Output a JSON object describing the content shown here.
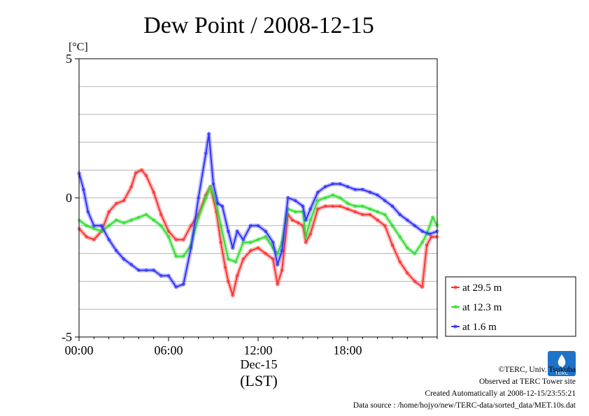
{
  "chart_data": {
    "type": "line",
    "title": "Dew Point / 2008-12-15",
    "ylabel": "[°C]",
    "xlabel_date": "Dec-15",
    "xlabel_tz": "(LST)",
    "xlim_hours": [
      0,
      24
    ],
    "ylim": [
      -5,
      5
    ],
    "yticks": [
      -5,
      0,
      5
    ],
    "ytick_labels": [
      "-5",
      "0",
      "5"
    ],
    "ygrid_step": 1,
    "xtick_hours": [
      0,
      6,
      12,
      18
    ],
    "xtick_labels": [
      "00:00",
      "06:00",
      "12:00",
      "18:00"
    ],
    "legend_position": "lower-right-outside",
    "series": [
      {
        "name": "at 29.5 m",
        "color": "#ff3333",
        "points": [
          [
            0,
            -1.1
          ],
          [
            0.5,
            -1.4
          ],
          [
            1,
            -1.5
          ],
          [
            1.5,
            -1.2
          ],
          [
            2,
            -0.5
          ],
          [
            2.5,
            -0.2
          ],
          [
            3,
            -0.1
          ],
          [
            3.5,
            0.4
          ],
          [
            3.8,
            0.9
          ],
          [
            4.2,
            1.0
          ],
          [
            4.5,
            0.8
          ],
          [
            5,
            0.2
          ],
          [
            5.5,
            -0.6
          ],
          [
            6,
            -1.2
          ],
          [
            6.5,
            -1.5
          ],
          [
            7,
            -1.5
          ],
          [
            7.5,
            -1.0
          ],
          [
            8,
            -0.6
          ],
          [
            8.5,
            0.1
          ],
          [
            8.8,
            0.4
          ],
          [
            9.2,
            -0.5
          ],
          [
            9.5,
            -1.6
          ],
          [
            9.8,
            -2.5
          ],
          [
            10,
            -3.0
          ],
          [
            10.3,
            -3.5
          ],
          [
            10.6,
            -2.8
          ],
          [
            11,
            -2.2
          ],
          [
            11.5,
            -1.9
          ],
          [
            12,
            -1.8
          ],
          [
            12.5,
            -2.0
          ],
          [
            13,
            -2.2
          ],
          [
            13.3,
            -3.1
          ],
          [
            13.6,
            -2.6
          ],
          [
            14,
            -0.6
          ],
          [
            14.3,
            -0.8
          ],
          [
            14.7,
            -0.9
          ],
          [
            15,
            -1.0
          ],
          [
            15.2,
            -1.6
          ],
          [
            15.5,
            -1.3
          ],
          [
            16,
            -0.4
          ],
          [
            16.5,
            -0.3
          ],
          [
            17,
            -0.3
          ],
          [
            17.5,
            -0.3
          ],
          [
            18,
            -0.4
          ],
          [
            18.5,
            -0.5
          ],
          [
            19,
            -0.6
          ],
          [
            19.5,
            -0.6
          ],
          [
            20,
            -0.8
          ],
          [
            20.5,
            -1.0
          ],
          [
            21,
            -1.7
          ],
          [
            21.5,
            -2.3
          ],
          [
            22,
            -2.7
          ],
          [
            22.5,
            -3.0
          ],
          [
            23,
            -3.2
          ],
          [
            23.3,
            -1.7
          ],
          [
            23.6,
            -1.4
          ],
          [
            24,
            -1.4
          ]
        ]
      },
      {
        "name": "at 12.3 m",
        "color": "#33dd33",
        "points": [
          [
            0,
            -0.8
          ],
          [
            0.5,
            -1.0
          ],
          [
            1,
            -1.1
          ],
          [
            1.5,
            -1.2
          ],
          [
            2,
            -1.0
          ],
          [
            2.5,
            -0.8
          ],
          [
            3,
            -0.9
          ],
          [
            3.5,
            -0.8
          ],
          [
            4,
            -0.7
          ],
          [
            4.5,
            -0.6
          ],
          [
            5,
            -0.8
          ],
          [
            5.5,
            -1.0
          ],
          [
            6,
            -1.4
          ],
          [
            6.5,
            -2.1
          ],
          [
            7,
            -2.1
          ],
          [
            7.5,
            -1.7
          ],
          [
            8,
            -0.7
          ],
          [
            8.5,
            0.0
          ],
          [
            8.8,
            0.4
          ],
          [
            9.2,
            -0.2
          ],
          [
            9.5,
            -1.0
          ],
          [
            10,
            -2.2
          ],
          [
            10.5,
            -2.3
          ],
          [
            11,
            -1.6
          ],
          [
            11.5,
            -1.6
          ],
          [
            12,
            -1.5
          ],
          [
            12.5,
            -1.4
          ],
          [
            13,
            -1.8
          ],
          [
            13.3,
            -2.0
          ],
          [
            13.6,
            -1.6
          ],
          [
            14,
            -0.4
          ],
          [
            14.5,
            -0.5
          ],
          [
            15,
            -0.5
          ],
          [
            15.2,
            -1.4
          ],
          [
            15.5,
            -0.8
          ],
          [
            16,
            -0.1
          ],
          [
            16.5,
            0.0
          ],
          [
            17,
            0.1
          ],
          [
            17.5,
            0.0
          ],
          [
            18,
            -0.2
          ],
          [
            18.5,
            -0.3
          ],
          [
            19,
            -0.3
          ],
          [
            19.5,
            -0.4
          ],
          [
            20,
            -0.5
          ],
          [
            20.5,
            -0.6
          ],
          [
            21,
            -1.0
          ],
          [
            21.5,
            -1.4
          ],
          [
            22,
            -1.8
          ],
          [
            22.5,
            -2.0
          ],
          [
            23,
            -1.6
          ],
          [
            23.3,
            -1.3
          ],
          [
            23.7,
            -0.7
          ],
          [
            24,
            -1.0
          ]
        ]
      },
      {
        "name": "at 1.6 m",
        "color": "#3333ff",
        "points": [
          [
            0,
            0.9
          ],
          [
            0.3,
            0.3
          ],
          [
            0.6,
            -0.5
          ],
          [
            1,
            -1.0
          ],
          [
            1.5,
            -1.0
          ],
          [
            2,
            -1.5
          ],
          [
            2.5,
            -1.9
          ],
          [
            3,
            -2.2
          ],
          [
            3.5,
            -2.4
          ],
          [
            4,
            -2.6
          ],
          [
            4.5,
            -2.6
          ],
          [
            5,
            -2.6
          ],
          [
            5.5,
            -2.8
          ],
          [
            6,
            -2.8
          ],
          [
            6.5,
            -3.2
          ],
          [
            7,
            -3.1
          ],
          [
            7.5,
            -1.8
          ],
          [
            8,
            0.0
          ],
          [
            8.5,
            1.6
          ],
          [
            8.7,
            2.3
          ],
          [
            9,
            0.5
          ],
          [
            9.3,
            -0.2
          ],
          [
            9.6,
            -0.3
          ],
          [
            10,
            -1.2
          ],
          [
            10.3,
            -1.8
          ],
          [
            10.6,
            -1.2
          ],
          [
            11,
            -1.5
          ],
          [
            11.5,
            -1.0
          ],
          [
            12,
            -1.0
          ],
          [
            12.5,
            -1.2
          ],
          [
            13,
            -1.6
          ],
          [
            13.3,
            -2.4
          ],
          [
            13.6,
            -1.9
          ],
          [
            14,
            0.0
          ],
          [
            14.5,
            -0.1
          ],
          [
            15,
            -0.3
          ],
          [
            15.2,
            -0.8
          ],
          [
            15.5,
            -0.4
          ],
          [
            16,
            0.2
          ],
          [
            16.5,
            0.4
          ],
          [
            17,
            0.5
          ],
          [
            17.5,
            0.5
          ],
          [
            18,
            0.4
          ],
          [
            18.5,
            0.3
          ],
          [
            19,
            0.3
          ],
          [
            19.5,
            0.2
          ],
          [
            20,
            0.1
          ],
          [
            20.5,
            -0.1
          ],
          [
            21,
            -0.3
          ],
          [
            21.5,
            -0.6
          ],
          [
            22,
            -0.8
          ],
          [
            22.5,
            -1.0
          ],
          [
            23,
            -1.2
          ],
          [
            23.5,
            -1.3
          ],
          [
            24,
            -1.2
          ]
        ]
      }
    ]
  },
  "credits": {
    "copyright": "©TERC, Univ. Tsukuba",
    "observed": "Observed at TERC Tower site",
    "created": "Created Automatically at 2008-12-15/23:55:21",
    "source": "Data source : /home/hojyo/new/TERC-data/sorted_data/MET.10s.dat",
    "logo_text": "TERC"
  }
}
